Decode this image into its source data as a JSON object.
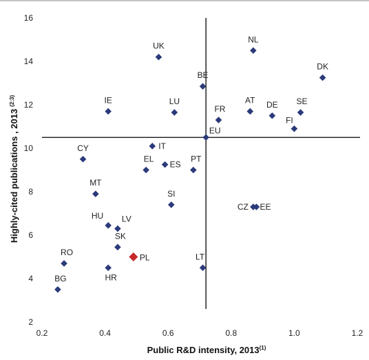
{
  "chart_data": {
    "type": "scatter",
    "xlabel": "Public R&D intensity, 2013",
    "xlabel_sup": "(1)",
    "ylabel": "Highly-cited publications , 2013",
    "ylabel_sup": "(2:3)",
    "xlim": [
      0.2,
      1.2
    ],
    "ylim": [
      2,
      16
    ],
    "x_ticks": [
      "0.2",
      "0.4",
      "0.6",
      "0.8",
      "1.0",
      "1.2"
    ],
    "y_ticks": [
      "2",
      "4",
      "6",
      "8",
      "10",
      "12",
      "14",
      "16"
    ],
    "grid": false,
    "reference_lines": {
      "x": 0.72,
      "y": 10.5
    },
    "marker_color": "#2b3a7a",
    "highlight_color": "#c62828",
    "points": [
      {
        "label": "NL",
        "x": 0.87,
        "y": 14.5
      },
      {
        "label": "DK",
        "x": 1.09,
        "y": 13.25
      },
      {
        "label": "UK",
        "x": 0.57,
        "y": 14.2
      },
      {
        "label": "BE",
        "x": 0.71,
        "y": 12.85
      },
      {
        "label": "IE",
        "x": 0.41,
        "y": 11.7
      },
      {
        "label": "LU",
        "x": 0.62,
        "y": 11.65
      },
      {
        "label": "FR",
        "x": 0.76,
        "y": 11.3
      },
      {
        "label": "AT",
        "x": 0.86,
        "y": 11.7
      },
      {
        "label": "DE",
        "x": 0.93,
        "y": 11.5
      },
      {
        "label": "SE",
        "x": 1.02,
        "y": 11.65
      },
      {
        "label": "FI",
        "x": 1.0,
        "y": 10.9
      },
      {
        "label": "EU",
        "x": 0.72,
        "y": 10.5
      },
      {
        "label": "IT",
        "x": 0.55,
        "y": 10.1
      },
      {
        "label": "CY",
        "x": 0.33,
        "y": 9.5
      },
      {
        "label": "EL",
        "x": 0.53,
        "y": 9.0
      },
      {
        "label": "ES",
        "x": 0.59,
        "y": 9.25
      },
      {
        "label": "PT",
        "x": 0.68,
        "y": 9.0
      },
      {
        "label": "MT",
        "x": 0.37,
        "y": 7.9
      },
      {
        "label": "SI",
        "x": 0.61,
        "y": 7.4
      },
      {
        "label": "CZ",
        "x": 0.87,
        "y": 7.3
      },
      {
        "label": "EE",
        "x": 0.88,
        "y": 7.3
      },
      {
        "label": "HU",
        "x": 0.41,
        "y": 6.45
      },
      {
        "label": "LV",
        "x": 0.44,
        "y": 6.3
      },
      {
        "label": "SK",
        "x": 0.44,
        "y": 5.45
      },
      {
        "label": "PL",
        "x": 0.49,
        "y": 5.0,
        "highlight": true
      },
      {
        "label": "RO",
        "x": 0.27,
        "y": 4.7
      },
      {
        "label": "HR",
        "x": 0.41,
        "y": 4.5
      },
      {
        "label": "LT",
        "x": 0.71,
        "y": 4.5
      },
      {
        "label": "BG",
        "x": 0.25,
        "y": 3.5
      }
    ]
  }
}
